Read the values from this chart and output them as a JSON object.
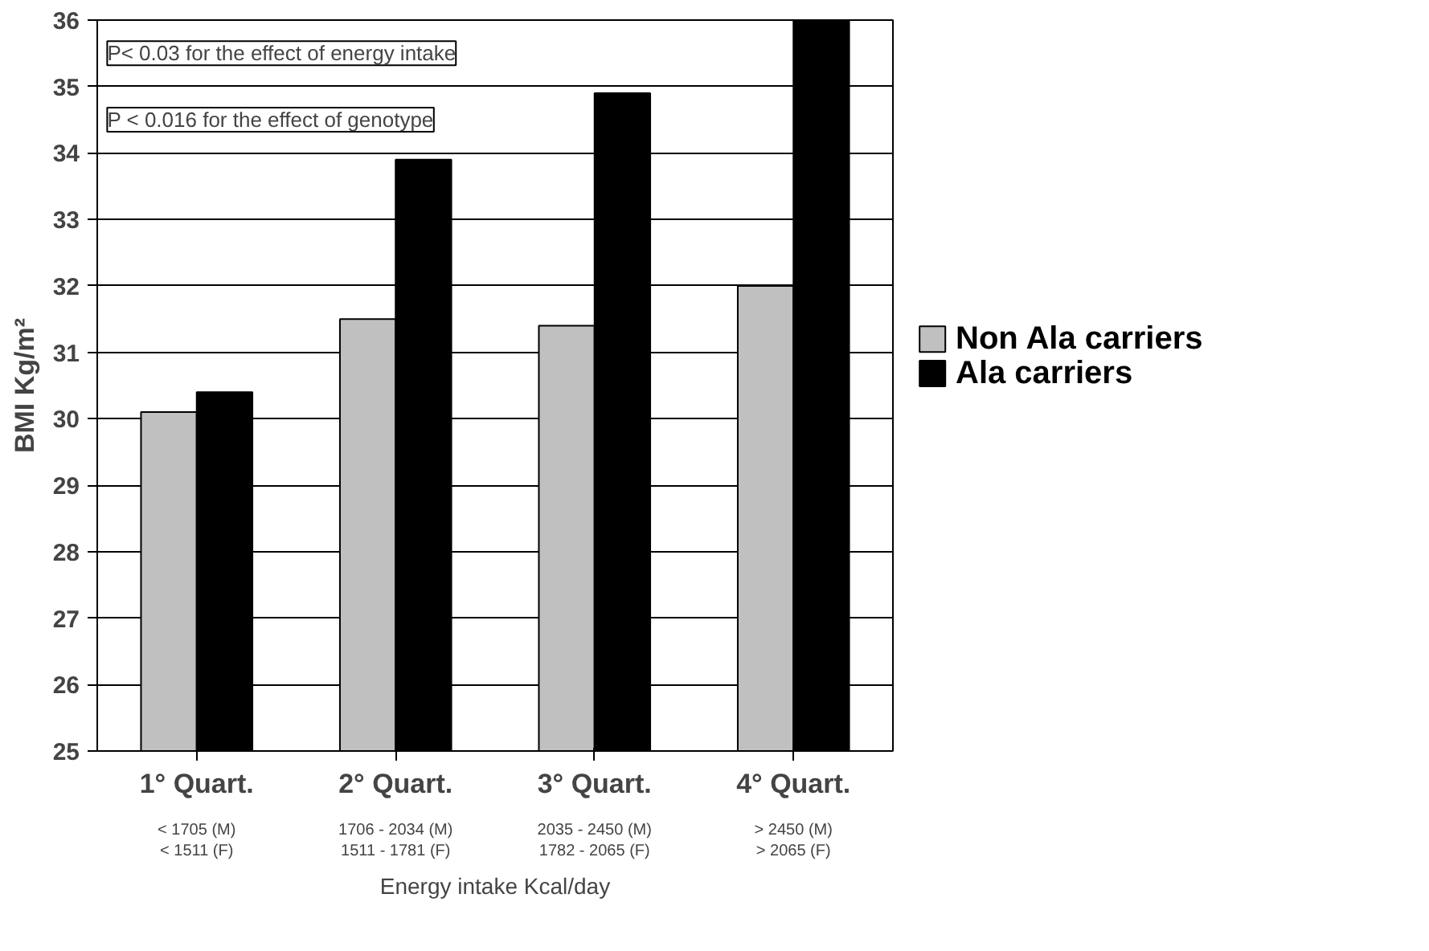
{
  "chart_data": {
    "type": "bar",
    "xlabel": "Energy intake Kcal/day",
    "ylabel": "BMI Kg/m²",
    "categories": [
      "1° Quart.\n< 1705 (M)\n< 1511 (F)",
      "2° Quart.\n1706 - 2034 (M)\n1511 - 1781 (F)",
      "3° Quart.\n2035 - 2450 (M)\n1782 - 2065 (F)",
      "4° Quart.\n> 2450 (M)\n> 2065 (F)"
    ],
    "series": [
      {
        "name": "Non Ala carriers",
        "color": "#c0c0c0",
        "values": [
          30.1,
          31.5,
          31.4,
          32.0
        ]
      },
      {
        "name": "Ala carriers",
        "color": "#000000",
        "values": [
          30.4,
          33.9,
          34.9,
          36.0
        ]
      }
    ],
    "ylim": [
      25,
      36
    ],
    "yticks": [
      25,
      26,
      27,
      28,
      29,
      30,
      31,
      32,
      33,
      34,
      35,
      36
    ],
    "grid": "y",
    "legend": "right",
    "annotations": [
      "P< 0.03 for the effect of energy intake",
      "P < 0.016 for the effect of genotype"
    ]
  }
}
